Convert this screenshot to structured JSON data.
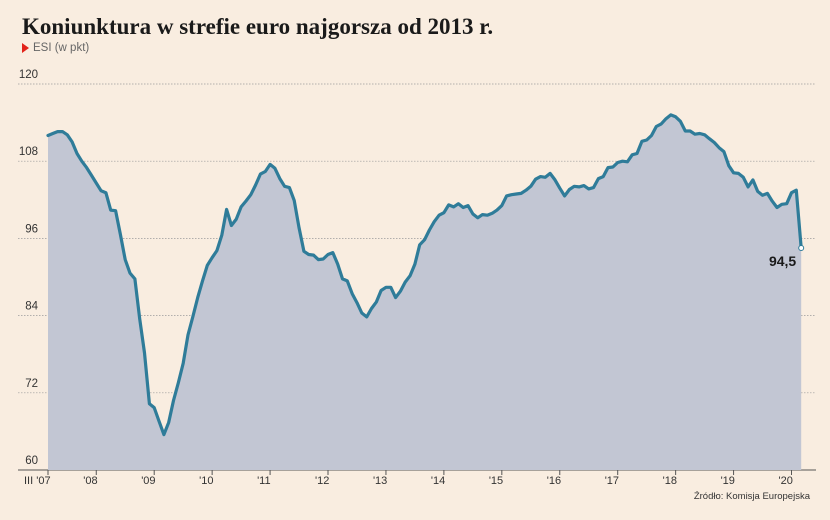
{
  "title": "Koniunktura w strefie euro najgorsza od 2013 r.",
  "legend": "ESI (w pkt)",
  "source": "Źródło: Komisja Europejska",
  "last_label": "94,5",
  "colors": {
    "line": "#2f7c99",
    "area": "#c2c6d3",
    "background": "#f9ede0",
    "marker": "#e2231a"
  },
  "chart_data": {
    "type": "area",
    "title": "Koniunktura w strefie euro najgorsza od 2013 r.",
    "xlabel": "",
    "ylabel": "",
    "ylim": [
      60,
      120
    ],
    "yticks": [
      120,
      108,
      96,
      84,
      72,
      60
    ],
    "xlim": [
      2007.167,
      2020.25
    ],
    "xticks": [
      {
        "x": 2007.167,
        "label": "III '07"
      },
      {
        "x": 2008,
        "label": "'08"
      },
      {
        "x": 2009,
        "label": "'09"
      },
      {
        "x": 2010,
        "label": "'10"
      },
      {
        "x": 2011,
        "label": "'11"
      },
      {
        "x": 2012,
        "label": "'12"
      },
      {
        "x": 2013,
        "label": "'13"
      },
      {
        "x": 2014,
        "label": "'14"
      },
      {
        "x": 2015,
        "label": "'15"
      },
      {
        "x": 2016,
        "label": "'16"
      },
      {
        "x": 2017,
        "label": "'17"
      },
      {
        "x": 2018,
        "label": "'18"
      },
      {
        "x": 2019,
        "label": "'19"
      },
      {
        "x": 2020,
        "label": "'20"
      }
    ],
    "grid": true,
    "series": [
      {
        "name": "ESI",
        "points": [
          [
            2007.167,
            112.0
          ],
          [
            2007.25,
            112.3
          ],
          [
            2007.333,
            112.6
          ],
          [
            2007.417,
            112.6
          ],
          [
            2007.5,
            112.1
          ],
          [
            2007.583,
            111.0
          ],
          [
            2007.667,
            109.2
          ],
          [
            2007.75,
            108.0
          ],
          [
            2007.833,
            107.0
          ],
          [
            2007.917,
            105.8
          ],
          [
            2008.0,
            104.6
          ],
          [
            2008.083,
            103.4
          ],
          [
            2008.167,
            103.1
          ],
          [
            2008.25,
            100.4
          ],
          [
            2008.333,
            100.3
          ],
          [
            2008.417,
            96.6
          ],
          [
            2008.5,
            92.7
          ],
          [
            2008.583,
            90.6
          ],
          [
            2008.667,
            89.7
          ],
          [
            2008.75,
            83.5
          ],
          [
            2008.833,
            78.2
          ],
          [
            2008.917,
            70.3
          ],
          [
            2009.0,
            69.7
          ],
          [
            2009.083,
            67.6
          ],
          [
            2009.167,
            65.5
          ],
          [
            2009.25,
            67.4
          ],
          [
            2009.333,
            70.8
          ],
          [
            2009.417,
            73.6
          ],
          [
            2009.5,
            76.6
          ],
          [
            2009.583,
            81.0
          ],
          [
            2009.667,
            83.8
          ],
          [
            2009.75,
            86.8
          ],
          [
            2009.833,
            89.4
          ],
          [
            2009.917,
            91.8
          ],
          [
            2010.0,
            93.0
          ],
          [
            2010.083,
            94.1
          ],
          [
            2010.167,
            96.5
          ],
          [
            2010.25,
            100.5
          ],
          [
            2010.333,
            98.0
          ],
          [
            2010.417,
            99.0
          ],
          [
            2010.5,
            100.9
          ],
          [
            2010.583,
            101.8
          ],
          [
            2010.667,
            102.8
          ],
          [
            2010.75,
            104.3
          ],
          [
            2010.833,
            106.0
          ],
          [
            2010.917,
            106.4
          ],
          [
            2011.0,
            107.5
          ],
          [
            2011.083,
            106.9
          ],
          [
            2011.167,
            105.3
          ],
          [
            2011.25,
            104.1
          ],
          [
            2011.333,
            103.9
          ],
          [
            2011.417,
            101.9
          ],
          [
            2011.5,
            97.7
          ],
          [
            2011.583,
            94.0
          ],
          [
            2011.667,
            93.5
          ],
          [
            2011.75,
            93.4
          ],
          [
            2011.833,
            92.7
          ],
          [
            2011.917,
            92.8
          ],
          [
            2012.0,
            93.5
          ],
          [
            2012.083,
            93.8
          ],
          [
            2012.167,
            92.0
          ],
          [
            2012.25,
            89.7
          ],
          [
            2012.333,
            89.4
          ],
          [
            2012.417,
            87.4
          ],
          [
            2012.5,
            86.0
          ],
          [
            2012.583,
            84.4
          ],
          [
            2012.667,
            83.8
          ],
          [
            2012.75,
            85.1
          ],
          [
            2012.833,
            86.1
          ],
          [
            2012.917,
            87.9
          ],
          [
            2013.0,
            88.4
          ],
          [
            2013.083,
            88.4
          ],
          [
            2013.167,
            86.8
          ],
          [
            2013.25,
            87.8
          ],
          [
            2013.333,
            89.2
          ],
          [
            2013.417,
            90.2
          ],
          [
            2013.5,
            92.0
          ],
          [
            2013.583,
            95.0
          ],
          [
            2013.667,
            95.8
          ],
          [
            2013.75,
            97.3
          ],
          [
            2013.833,
            98.6
          ],
          [
            2013.917,
            99.6
          ],
          [
            2014.0,
            100.0
          ],
          [
            2014.083,
            101.2
          ],
          [
            2014.167,
            100.9
          ],
          [
            2014.25,
            101.4
          ],
          [
            2014.333,
            100.8
          ],
          [
            2014.417,
            101.1
          ],
          [
            2014.5,
            99.8
          ],
          [
            2014.583,
            99.2
          ],
          [
            2014.667,
            99.7
          ],
          [
            2014.75,
            99.6
          ],
          [
            2014.833,
            99.9
          ],
          [
            2014.917,
            100.4
          ],
          [
            2015.0,
            101.1
          ],
          [
            2015.083,
            102.6
          ],
          [
            2015.167,
            102.8
          ],
          [
            2015.25,
            102.9
          ],
          [
            2015.333,
            103.0
          ],
          [
            2015.417,
            103.5
          ],
          [
            2015.5,
            104.1
          ],
          [
            2015.583,
            105.2
          ],
          [
            2015.667,
            105.6
          ],
          [
            2015.75,
            105.5
          ],
          [
            2015.833,
            106.1
          ],
          [
            2015.917,
            105.1
          ],
          [
            2016.0,
            103.8
          ],
          [
            2016.083,
            102.6
          ],
          [
            2016.167,
            103.6
          ],
          [
            2016.25,
            104.1
          ],
          [
            2016.333,
            104.0
          ],
          [
            2016.417,
            104.2
          ],
          [
            2016.5,
            103.7
          ],
          [
            2016.583,
            103.9
          ],
          [
            2016.667,
            105.3
          ],
          [
            2016.75,
            105.6
          ],
          [
            2016.833,
            107.0
          ],
          [
            2016.917,
            107.1
          ],
          [
            2017.0,
            107.8
          ],
          [
            2017.083,
            108.0
          ],
          [
            2017.167,
            107.9
          ],
          [
            2017.25,
            109.0
          ],
          [
            2017.333,
            109.2
          ],
          [
            2017.417,
            111.1
          ],
          [
            2017.5,
            111.3
          ],
          [
            2017.583,
            112.0
          ],
          [
            2017.667,
            113.4
          ],
          [
            2017.75,
            113.8
          ],
          [
            2017.833,
            114.6
          ],
          [
            2017.917,
            115.2
          ],
          [
            2018.0,
            114.9
          ],
          [
            2018.083,
            114.2
          ],
          [
            2018.167,
            112.7
          ],
          [
            2018.25,
            112.7
          ],
          [
            2018.333,
            112.2
          ],
          [
            2018.417,
            112.3
          ],
          [
            2018.5,
            112.1
          ],
          [
            2018.583,
            111.5
          ],
          [
            2018.667,
            110.9
          ],
          [
            2018.75,
            110.1
          ],
          [
            2018.833,
            109.5
          ],
          [
            2018.917,
            107.3
          ],
          [
            2019.0,
            106.2
          ],
          [
            2019.083,
            106.1
          ],
          [
            2019.167,
            105.5
          ],
          [
            2019.25,
            104.0
          ],
          [
            2019.333,
            105.1
          ],
          [
            2019.417,
            103.3
          ],
          [
            2019.5,
            102.7
          ],
          [
            2019.583,
            103.0
          ],
          [
            2019.667,
            101.8
          ],
          [
            2019.75,
            100.8
          ],
          [
            2019.833,
            101.3
          ],
          [
            2019.917,
            101.4
          ],
          [
            2020.0,
            103.1
          ],
          [
            2020.083,
            103.5
          ],
          [
            2020.167,
            94.5
          ]
        ]
      }
    ]
  }
}
